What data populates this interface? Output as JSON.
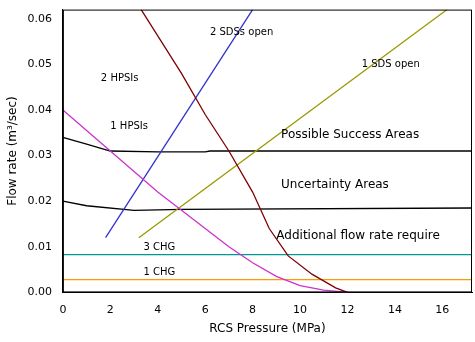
{
  "chart_data": {
    "type": "line",
    "x_label": "RCS Pressure (MPa)",
    "y_label": "Flow rate (m³/sec)",
    "xlim": [
      0,
      17.25
    ],
    "ylim": [
      0,
      0.062
    ],
    "xticks": [
      0,
      2,
      4,
      6,
      8,
      10,
      12,
      14,
      16
    ],
    "yticks": [
      {
        "value": 0,
        "label": "0.00"
      },
      {
        "value": 0.01,
        "label": "0.01"
      },
      {
        "value": 0.02,
        "label": "0.02"
      },
      {
        "value": 0.03,
        "label": "0.03"
      },
      {
        "value": 0.04,
        "label": "0.04"
      },
      {
        "value": 0.05,
        "label": "0.05"
      },
      {
        "value": 0.06,
        "label": "0.06"
      }
    ],
    "grid": false,
    "series": [
      {
        "name": "2 HPSIs",
        "color": "#800000",
        "x": [
          3.3,
          5,
          6,
          7,
          8,
          8.7,
          9.5,
          10.5,
          11.5,
          12
        ],
        "values": [
          0.062,
          0.048,
          0.039,
          0.031,
          0.022,
          0.014,
          0.008,
          0.004,
          0.001,
          0
        ]
      },
      {
        "name": "1 HPSIs",
        "color": "#cc33cc",
        "x": [
          0,
          2,
          4,
          5,
          6,
          7,
          8,
          9,
          10,
          11,
          12
        ],
        "values": [
          0.04,
          0.031,
          0.022,
          0.018,
          0.014,
          0.01,
          0.0065,
          0.0035,
          0.0015,
          0.0005,
          0
        ]
      },
      {
        "name": "2 SDSs open",
        "color": "#3333cc",
        "x": [
          1.8,
          8
        ],
        "values": [
          0.012,
          0.062
        ]
      },
      {
        "name": "1 SDS open",
        "color": "#999900",
        "x": [
          3.2,
          16.2
        ],
        "values": [
          0.012,
          0.062
        ]
      },
      {
        "name": "Possible Success Areas",
        "color": "#000000",
        "x": [
          0,
          1,
          2,
          4,
          6,
          6.2,
          17.25
        ],
        "values": [
          0.034,
          0.0325,
          0.031,
          0.0308,
          0.0308,
          0.031,
          0.031
        ]
      },
      {
        "name": "Uncertainty Areas",
        "color": "#000000",
        "x": [
          0,
          1,
          3,
          5,
          17.25
        ],
        "values": [
          0.02,
          0.019,
          0.018,
          0.0182,
          0.0185
        ]
      },
      {
        "name": "3 CHG",
        "color": "#009999",
        "x": [
          0,
          17.25
        ],
        "values": [
          0.0083,
          0.0083
        ]
      },
      {
        "name": "1 CHG",
        "color": "#ff9900",
        "x": [
          0,
          17.25
        ],
        "values": [
          0.0028,
          0.0028
        ]
      }
    ],
    "annotations": [
      {
        "text": "2 HPSIs",
        "x": 1.6,
        "y": 0.047
      },
      {
        "text": "1 HPSIs",
        "x": 2.0,
        "y": 0.0365
      },
      {
        "text": "2 SDSs open",
        "x": 6.2,
        "y": 0.057
      },
      {
        "text": "1 SDS open",
        "x": 12.6,
        "y": 0.05
      },
      {
        "text": "Possible Success Areas",
        "x": 9.2,
        "y": 0.0345
      },
      {
        "text": "Uncertainty Areas",
        "x": 9.2,
        "y": 0.0235
      },
      {
        "text": "Additional flow rate require",
        "x": 9.0,
        "y": 0.0125
      },
      {
        "text": "3 CHG",
        "x": 3.4,
        "y": 0.0098
      },
      {
        "text": "1 CHG",
        "x": 3.4,
        "y": 0.0043
      }
    ]
  }
}
